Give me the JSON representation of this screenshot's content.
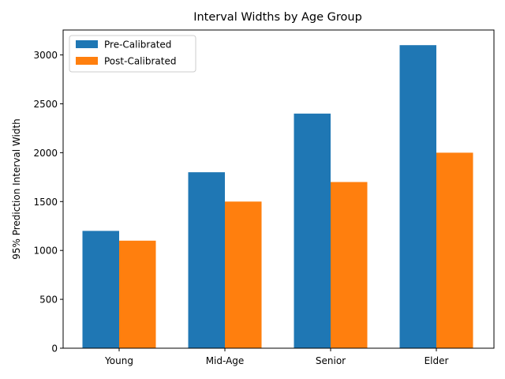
{
  "chart_data": {
    "type": "bar",
    "title": "Interval Widths by Age Group",
    "xlabel": "",
    "ylabel": "95% Prediction Interval Width",
    "categories": [
      "Young",
      "Mid-Age",
      "Senior",
      "Elder"
    ],
    "series": [
      {
        "name": "Pre-Calibrated",
        "color": "#1f77b4",
        "values": [
          1200,
          1800,
          2400,
          3100
        ]
      },
      {
        "name": "Post-Calibrated",
        "color": "#ff7f0e",
        "values": [
          1100,
          1500,
          1700,
          2000
        ]
      }
    ],
    "ylim": [
      0,
      3255
    ],
    "yticks": [
      0,
      500,
      1000,
      1500,
      2000,
      2500,
      3000
    ],
    "grid": false,
    "legend_position": "top-left"
  }
}
